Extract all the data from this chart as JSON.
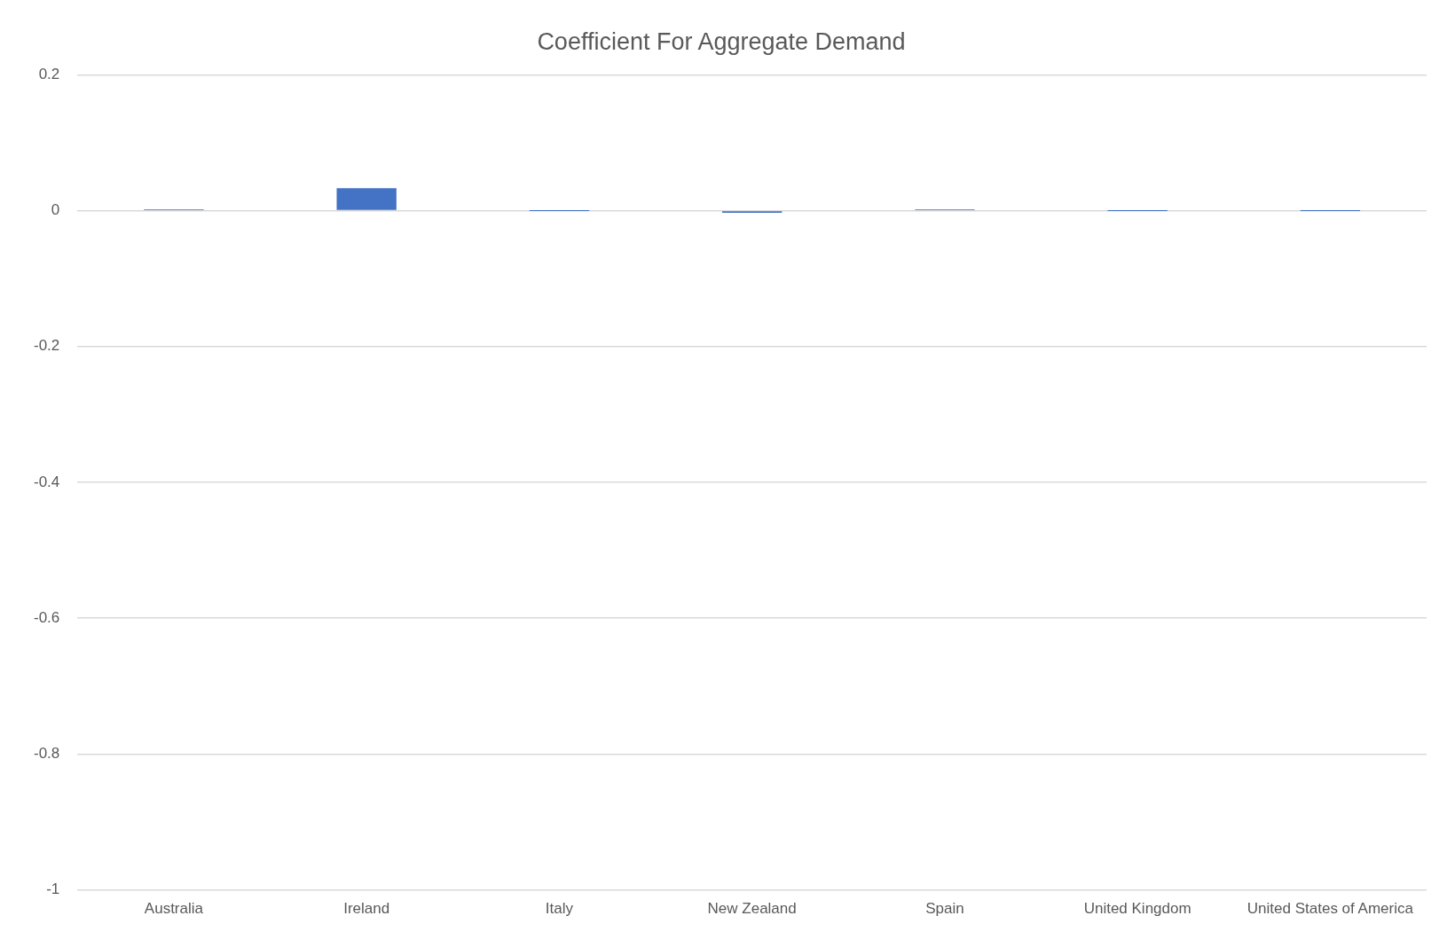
{
  "chart_data": {
    "type": "bar",
    "title": "Coefficient For Aggregate Demand",
    "categories": [
      "Australia",
      "Ireland",
      "Italy",
      "New Zealand",
      "Spain",
      "United Kingdom",
      "United States of America"
    ],
    "values": [
      0.002,
      0.033,
      0,
      -0.003,
      0.002,
      0,
      0
    ],
    "color": "#4472c4",
    "ylim": [
      -1,
      0.2
    ],
    "yticks": [
      -1,
      -0.8,
      -0.6,
      -0.4,
      -0.2,
      0,
      0.2
    ],
    "grid": "y"
  }
}
